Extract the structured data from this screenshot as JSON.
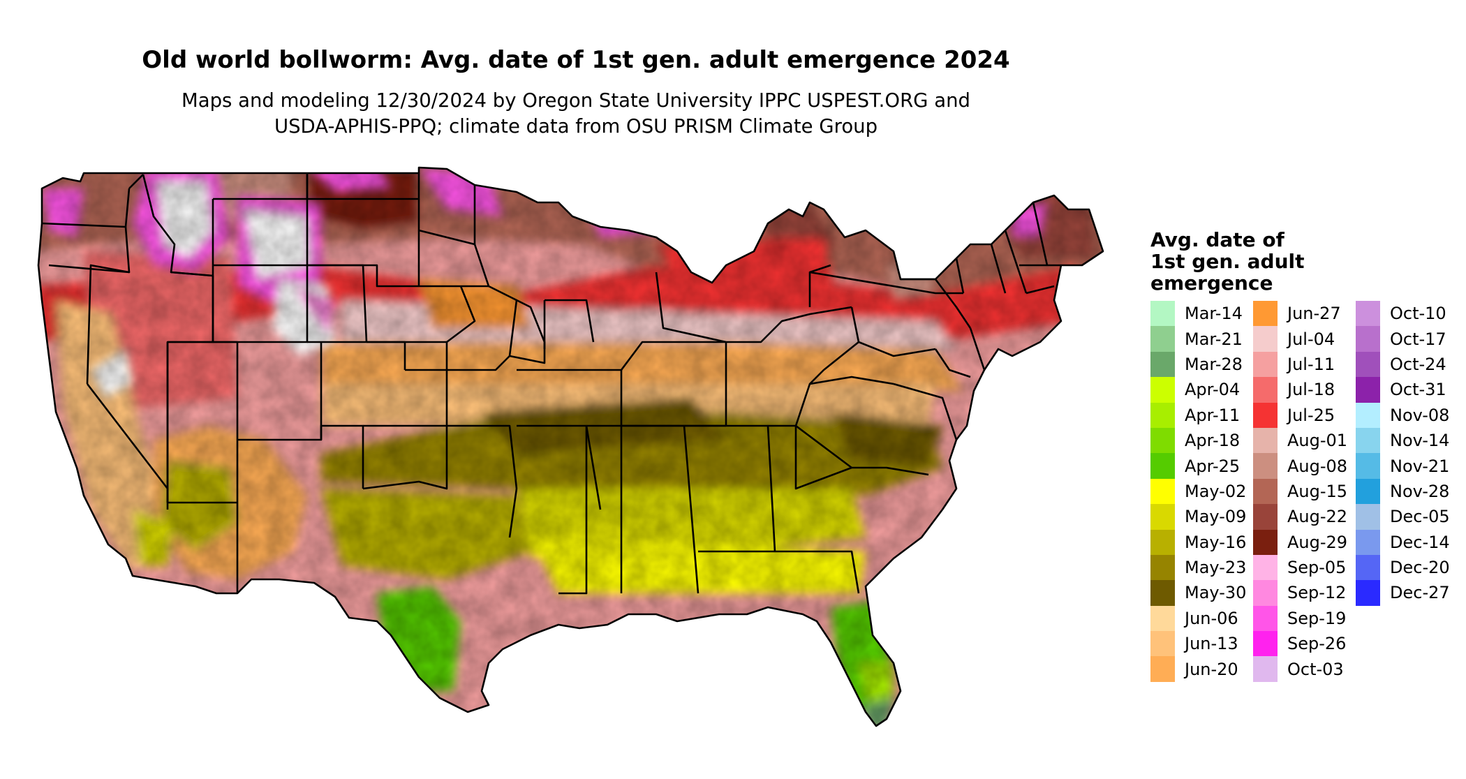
{
  "title": "Old world bollworm: Avg. date of 1st gen. adult emergence 2024",
  "subtitle_line1": "Maps and modeling 12/30/2024 by Oregon State University IPPC USPEST.ORG and",
  "subtitle_line2": "USDA-APHIS-PPQ; climate data from OSU PRISM Climate Group",
  "legend": {
    "title_lines": [
      "Avg. date of",
      "1st gen. adult",
      "emergence"
    ],
    "columns": [
      [
        {
          "label": "Mar-14",
          "color": "#b3f7c3"
        },
        {
          "label": "Mar-21",
          "color": "#8fcf8f"
        },
        {
          "label": "Mar-28",
          "color": "#6aa86a"
        },
        {
          "label": "Apr-04",
          "color": "#ccff00"
        },
        {
          "label": "Apr-11",
          "color": "#a8ee00"
        },
        {
          "label": "Apr-18",
          "color": "#7fdc00"
        },
        {
          "label": "Apr-25",
          "color": "#55cc00"
        },
        {
          "label": "May-02",
          "color": "#ffff00"
        },
        {
          "label": "May-09",
          "color": "#d9d900"
        },
        {
          "label": "May-16",
          "color": "#b8b000"
        },
        {
          "label": "May-23",
          "color": "#968400"
        },
        {
          "label": "May-30",
          "color": "#6e5a00"
        },
        {
          "label": "Jun-06",
          "color": "#ffd99a"
        },
        {
          "label": "Jun-13",
          "color": "#ffc27a"
        },
        {
          "label": "Jun-20",
          "color": "#ffad55"
        }
      ],
      [
        {
          "label": "Jun-27",
          "color": "#ff9933"
        },
        {
          "label": "Jul-04",
          "color": "#f5cccc"
        },
        {
          "label": "Jul-11",
          "color": "#f5a0a0"
        },
        {
          "label": "Jul-18",
          "color": "#f56b6b"
        },
        {
          "label": "Jul-25",
          "color": "#f53333"
        },
        {
          "label": "Aug-01",
          "color": "#e6b3aa"
        },
        {
          "label": "Aug-08",
          "color": "#cc8f80"
        },
        {
          "label": "Aug-15",
          "color": "#b36655"
        },
        {
          "label": "Aug-22",
          "color": "#99443a"
        },
        {
          "label": "Aug-29",
          "color": "#7a1f0f"
        },
        {
          "label": "Sep-05",
          "color": "#ffb3e6"
        },
        {
          "label": "Sep-12",
          "color": "#ff88e0"
        },
        {
          "label": "Sep-19",
          "color": "#ff55e8"
        },
        {
          "label": "Sep-26",
          "color": "#ff22ee"
        },
        {
          "label": "Oct-03",
          "color": "#e0b8ee"
        }
      ],
      [
        {
          "label": "Oct-10",
          "color": "#cc90dd"
        },
        {
          "label": "Oct-17",
          "color": "#b870cc"
        },
        {
          "label": "Oct-24",
          "color": "#a050bb"
        },
        {
          "label": "Oct-31",
          "color": "#8c22aa"
        },
        {
          "label": "Nov-08",
          "color": "#b3eeff"
        },
        {
          "label": "Nov-14",
          "color": "#88d4ee"
        },
        {
          "label": "Nov-21",
          "color": "#55bbe6"
        },
        {
          "label": "Nov-28",
          "color": "#22a0dd"
        },
        {
          "label": "Dec-05",
          "color": "#a0c0e6"
        },
        {
          "label": "Dec-14",
          "color": "#7a99ee"
        },
        {
          "label": "Dec-20",
          "color": "#5566f5"
        },
        {
          "label": "Dec-27",
          "color": "#2a2aff"
        }
      ]
    ]
  }
}
